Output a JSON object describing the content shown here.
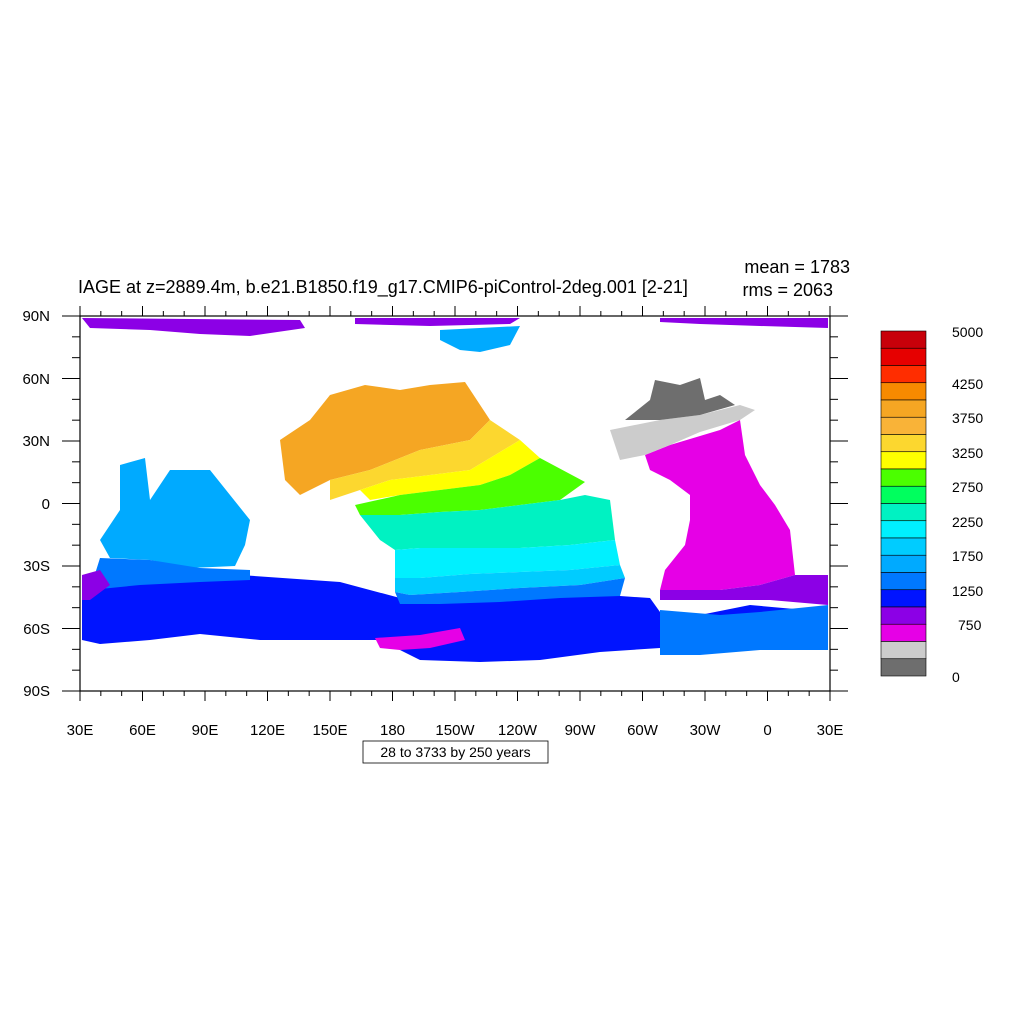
{
  "title": "IAGE at z=2889.4m, b.e21.B1850.f19_g17.CMIP6-piControl-2deg.001 [2-21]",
  "stats": {
    "mean": "mean = 1783",
    "rms": "rms = 2063"
  },
  "subtitle": "28 to 3733 by 250 years",
  "chart_data": {
    "type": "heatmap",
    "variable": "IAGE",
    "xlabels": [
      "30E",
      "60E",
      "90E",
      "120E",
      "150E",
      "180",
      "150W",
      "120W",
      "90W",
      "60W",
      "30W",
      "0",
      "30E"
    ],
    "ylabels": [
      "90N",
      "60N",
      "30N",
      "0",
      "30S",
      "60S",
      "90S"
    ],
    "x_range_deg_east": [
      30,
      390
    ],
    "y_range_deg": [
      -90,
      90
    ],
    "contour_min": 28,
    "contour_max": 3733,
    "contour_interval": 250,
    "colorbar": {
      "labels": [
        "5000",
        "4250",
        "3750",
        "3250",
        "2750",
        "2250",
        "1750",
        "1250",
        "750",
        "0"
      ],
      "colors": [
        "#c8000a",
        "#e60000",
        "#ff2d00",
        "#f78a00",
        "#f5a623",
        "#f9b338",
        "#fcd72f",
        "#ffff00",
        "#4bff00",
        "#00ff5e",
        "#00f2c2",
        "#00f0ff",
        "#00ccff",
        "#00aaff",
        "#0078ff",
        "#0014ff",
        "#8c00e6",
        "#e600e6",
        "#cccccc",
        "#6e6e6e"
      ]
    }
  }
}
